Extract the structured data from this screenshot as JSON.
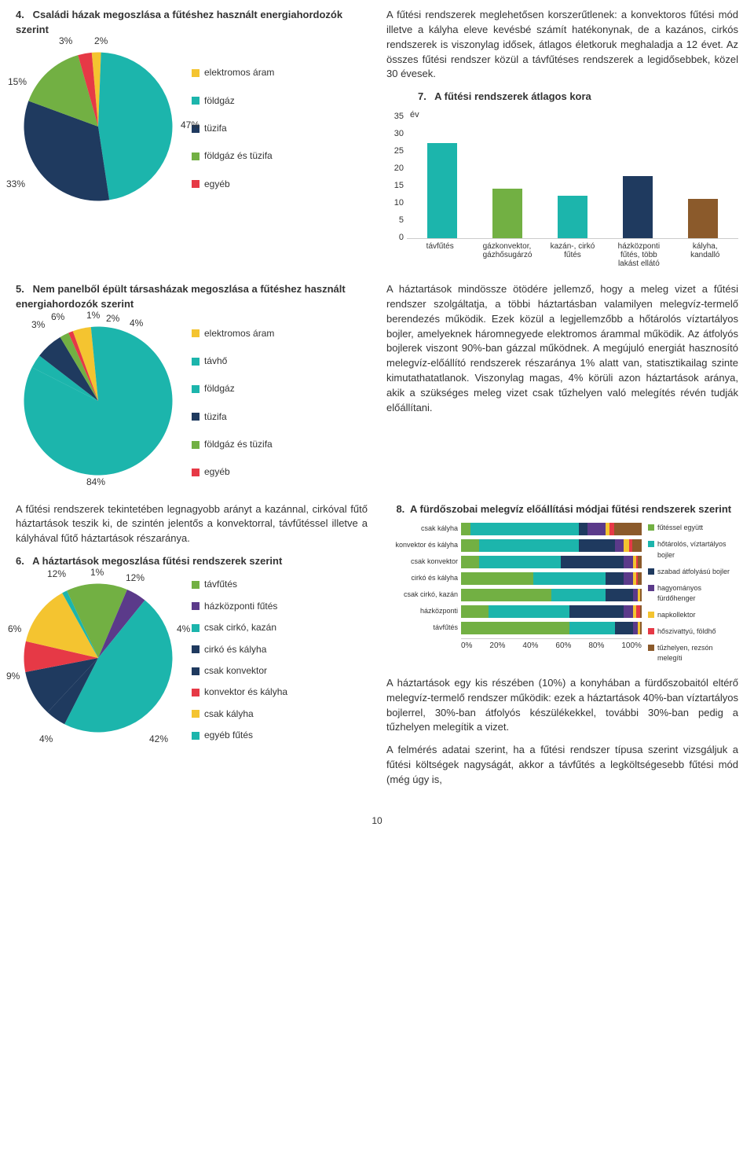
{
  "colors": {
    "teal": "#1cb5ac",
    "navy": "#1f3a5f",
    "green": "#72b043",
    "red": "#e63946",
    "yellow": "#f4c430",
    "gold": "#d49a00",
    "brown": "#8b5a2b",
    "purple": "#5b3a8a",
    "orange": "#e08b2e",
    "pink": "#d97ba0",
    "grid": "#cccccc",
    "text": "#333333",
    "bg": "#ffffff"
  },
  "chart4": {
    "number": "4.",
    "title": "Családi házak megoszlása a fűtéshez használt energiahordozók szerint",
    "slices": [
      {
        "label": "elektromos áram",
        "value": 2,
        "color": "#f4c430"
      },
      {
        "label": "földgáz",
        "value": 47,
        "color": "#1cb5ac"
      },
      {
        "label": "tüzifa",
        "value": 33,
        "color": "#1f3a5f"
      },
      {
        "label": "földgáz és tüzifa",
        "value": 15,
        "color": "#72b043"
      },
      {
        "label": "egyéb",
        "value": 3,
        "color": "#e63946"
      }
    ],
    "visible_pct_labels": [
      "15%",
      "3%",
      "2%",
      "47%",
      "33%"
    ]
  },
  "chart5": {
    "number": "5.",
    "title": "Nem panelből épült társasházak megoszlása a fűtéshez használt energiahordozók szerint",
    "slices": [
      {
        "label": "elektromos áram",
        "value": 4,
        "color": "#f4c430"
      },
      {
        "label": "távhő",
        "value": 84,
        "color": "#1cb5ac"
      },
      {
        "label": "földgáz",
        "value": 3,
        "color": "#1cb5ac"
      },
      {
        "label": "tüzifa",
        "value": 6,
        "color": "#1f3a5f"
      },
      {
        "label": "földgáz és tüzifa",
        "value": 2,
        "color": "#72b043"
      },
      {
        "label": "egyéb",
        "value": 1,
        "color": "#e63946"
      }
    ],
    "visible_pct_labels": [
      "3%",
      "6%",
      "1%",
      "2%",
      "4%",
      "84%"
    ]
  },
  "chart6": {
    "number": "6.",
    "title": "A háztartások megoszlása fűtési rendszerek szerint",
    "slices": [
      {
        "label": "távfűtés",
        "value": 12,
        "color": "#72b043"
      },
      {
        "label": "házközponti fűtés",
        "value": 4,
        "color": "#5b3a8a"
      },
      {
        "label": "csak cirkó, kazán",
        "value": 42,
        "color": "#1cb5ac"
      },
      {
        "label": "cirkó és kályha",
        "value": 4,
        "color": "#1f3a5f"
      },
      {
        "label": "csak konvektor",
        "value": 9,
        "color": "#1f3a5f"
      },
      {
        "label": "konvektor és kályha",
        "value": 6,
        "color": "#e63946"
      },
      {
        "label": "csak kályha",
        "value": 12,
        "color": "#f4c430"
      },
      {
        "label": "egyéb fűtés",
        "value": 1,
        "color": "#1cb5ac"
      }
    ],
    "visible_pct_labels": [
      "12%",
      "1%",
      "12%",
      "6%",
      "4%",
      "9%",
      "4%",
      "42%"
    ]
  },
  "chart7": {
    "number": "7.",
    "title": "A fűtési rendszerek átlagos kora",
    "ylabel": "év",
    "ylim": [
      0,
      35
    ],
    "ytick_step": 5,
    "bars": [
      {
        "label": "távfűtés",
        "value": 29,
        "color": "#1cb5ac"
      },
      {
        "label": "gázkonvektor, gázhősugárzó",
        "value": 15,
        "color": "#72b043"
      },
      {
        "label": "kazán-, cirkó fűtés",
        "value": 13,
        "color": "#1cb5ac"
      },
      {
        "label": "házközponti fűtés, több lakást ellátó",
        "value": 19,
        "color": "#1f3a5f"
      },
      {
        "label": "kályha, kandalló",
        "value": 12,
        "color": "#8b5a2b"
      }
    ]
  },
  "chart8": {
    "number": "8.",
    "title": "A fürdőszobai melegvíz előállítási módjai fűtési rendszerek szerint",
    "x_ticks": [
      "0%",
      "20%",
      "40%",
      "60%",
      "80%",
      "100%"
    ],
    "legend": [
      {
        "label": "fűtéssel együtt",
        "color": "#72b043"
      },
      {
        "label": "hőtárolós, víztartályos bojler",
        "color": "#1cb5ac"
      },
      {
        "label": "szabad átfolyású bojler",
        "color": "#1f3a5f"
      },
      {
        "label": "hagyományos fürdőhenger",
        "color": "#5b3a8a"
      },
      {
        "label": "napkollektor",
        "color": "#f4c430"
      },
      {
        "label": "hőszivattyú, földhő",
        "color": "#e63946"
      },
      {
        "label": "tűzhelyen, rezsón melegíti",
        "color": "#8b5a2b"
      }
    ],
    "rows": [
      {
        "label": "csak kályha",
        "segs": [
          {
            "pct": 5,
            "color": "#72b043"
          },
          {
            "pct": 60,
            "color": "#1cb5ac"
          },
          {
            "pct": 5,
            "color": "#1f3a5f"
          },
          {
            "pct": 10,
            "color": "#5b3a8a"
          },
          {
            "pct": 2,
            "color": "#f4c430"
          },
          {
            "pct": 3,
            "color": "#e63946"
          },
          {
            "pct": 15,
            "color": "#8b5a2b"
          }
        ]
      },
      {
        "label": "konvektor és kályha",
        "segs": [
          {
            "pct": 10,
            "color": "#72b043"
          },
          {
            "pct": 55,
            "color": "#1cb5ac"
          },
          {
            "pct": 20,
            "color": "#1f3a5f"
          },
          {
            "pct": 5,
            "color": "#5b3a8a"
          },
          {
            "pct": 3,
            "color": "#f4c430"
          },
          {
            "pct": 2,
            "color": "#e63946"
          },
          {
            "pct": 5,
            "color": "#8b5a2b"
          }
        ]
      },
      {
        "label": "csak konvektor",
        "segs": [
          {
            "pct": 10,
            "color": "#72b043"
          },
          {
            "pct": 45,
            "color": "#1cb5ac"
          },
          {
            "pct": 35,
            "color": "#1f3a5f"
          },
          {
            "pct": 5,
            "color": "#5b3a8a"
          },
          {
            "pct": 2,
            "color": "#f4c430"
          },
          {
            "pct": 1,
            "color": "#e63946"
          },
          {
            "pct": 2,
            "color": "#8b5a2b"
          }
        ]
      },
      {
        "label": "cirkó és kályha",
        "segs": [
          {
            "pct": 40,
            "color": "#72b043"
          },
          {
            "pct": 40,
            "color": "#1cb5ac"
          },
          {
            "pct": 10,
            "color": "#1f3a5f"
          },
          {
            "pct": 5,
            "color": "#5b3a8a"
          },
          {
            "pct": 2,
            "color": "#f4c430"
          },
          {
            "pct": 1,
            "color": "#e63946"
          },
          {
            "pct": 2,
            "color": "#8b5a2b"
          }
        ]
      },
      {
        "label": "csak cirkó, kazán",
        "segs": [
          {
            "pct": 50,
            "color": "#72b043"
          },
          {
            "pct": 30,
            "color": "#1cb5ac"
          },
          {
            "pct": 15,
            "color": "#1f3a5f"
          },
          {
            "pct": 3,
            "color": "#5b3a8a"
          },
          {
            "pct": 1,
            "color": "#f4c430"
          },
          {
            "pct": 0,
            "color": "#e63946"
          },
          {
            "pct": 1,
            "color": "#8b5a2b"
          }
        ]
      },
      {
        "label": "házközponti",
        "segs": [
          {
            "pct": 15,
            "color": "#72b043"
          },
          {
            "pct": 45,
            "color": "#1cb5ac"
          },
          {
            "pct": 30,
            "color": "#1f3a5f"
          },
          {
            "pct": 5,
            "color": "#5b3a8a"
          },
          {
            "pct": 2,
            "color": "#f4c430"
          },
          {
            "pct": 2,
            "color": "#e63946"
          },
          {
            "pct": 1,
            "color": "#8b5a2b"
          }
        ]
      },
      {
        "label": "távfűtés",
        "segs": [
          {
            "pct": 60,
            "color": "#72b043"
          },
          {
            "pct": 25,
            "color": "#1cb5ac"
          },
          {
            "pct": 10,
            "color": "#1f3a5f"
          },
          {
            "pct": 3,
            "color": "#5b3a8a"
          },
          {
            "pct": 1,
            "color": "#f4c430"
          },
          {
            "pct": 0,
            "color": "#e63946"
          },
          {
            "pct": 1,
            "color": "#8b5a2b"
          }
        ]
      }
    ]
  },
  "text": {
    "p1": "A fűtési rendszerek meglehetősen korszerűtlenek: a konvektoros fűtési mód illetve a kályha eleve kevésbé számít hatékonynak, de a kazános, cirkós rendszerek is viszonylag idősek, átlagos életkoruk meghaladja a 12 évet. Az összes fűtési rendszer közül a távfűtéses rendszerek a legidősebbek, közel 30 évesek.",
    "p2": "A háztartások mindössze ötödére jellemző, hogy a meleg vizet a fűtési rendszer szolgáltatja, a többi háztartásban valamilyen melegvíz-termelő berendezés működik. Ezek közül a legjellemzőbb a hőtárolós víztartályos bojler, amelyeknek háromnegyede elektromos árammal működik. Az átfolyós bojlerek viszont 90%-ban gázzal működnek. A megújuló energiát hasznosító melegvíz-előállító rendszerek részaránya 1% alatt van, statisztikailag szinte kimutathatatlanok. Viszonylag magas, 4% körüli azon háztartások aránya, akik a szükséges meleg vizet csak tűzhelyen való melegítés révén tudják előállítani.",
    "p3": "A fűtési rendszerek tekintetében legnagyobb arányt a kazánnal, cirkóval fűtő háztartások teszik ki, de szintén jelentős a konvektorral, távfűtéssel illetve a kályhával fűtő háztartások részaránya.",
    "p4": "A háztartások egy kis részében (10%) a konyhában a fürdőszobaitól eltérő melegvíz-termelő rendszer működik: ezek a háztartások 40%-ban víztartályos bojlerrel, 30%-ban átfolyós készülékekkel, további 30%-ban pedig a tűzhelyen melegítik a vizet.",
    "p5": "A felmérés adatai szerint, ha a fűtési rendszer típusa szerint vizsgáljuk a fűtési költségek nagyságát, akkor a távfűtés a legköltségesebb fűtési mód (még úgy is,"
  },
  "page_number": "10"
}
